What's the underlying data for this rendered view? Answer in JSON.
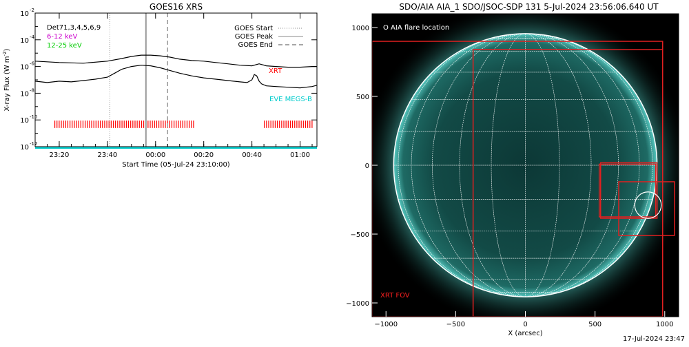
{
  "footer_timestamp": "17-Jul-2024 23:47",
  "chart_data": [
    {
      "type": "line",
      "title": "GOES16 XRS",
      "xlabel": "Start Time (05-Jul-24 23:10:00)",
      "ylabel": "X-ray Flux (W m",
      "ylabel_sup": "-2",
      "ylabel_close": ")",
      "log_y": true,
      "x_unit": "minutes since 23:10:00",
      "xlim": [
        0,
        117
      ],
      "ylim_exp": [
        -12,
        -2
      ],
      "x_ticks": [
        {
          "x": 10,
          "label": "23:20"
        },
        {
          "x": 30,
          "label": "23:40"
        },
        {
          "x": 50,
          "label": "00:00"
        },
        {
          "x": 70,
          "label": "00:20"
        },
        {
          "x": 90,
          "label": "00:40"
        },
        {
          "x": 110,
          "label": "01:00"
        }
      ],
      "y_ticks": [
        {
          "exp": -12,
          "label": "10",
          "sup": "-12"
        },
        {
          "exp": -10,
          "label": "10",
          "sup": "-10"
        },
        {
          "exp": -8,
          "label": "10",
          "sup": "-8"
        },
        {
          "exp": -6,
          "label": "10",
          "sup": "-6"
        },
        {
          "exp": -4,
          "label": "10",
          "sup": "-4"
        },
        {
          "exp": -2,
          "label": "10",
          "sup": "-2"
        }
      ],
      "legend_left": [
        {
          "text": "Det71,3,4,5,6,9",
          "color": "#000000"
        },
        {
          "text": "6-12 keV",
          "color": "#cc00cc"
        },
        {
          "text": "12-25 keV",
          "color": "#00cc00"
        }
      ],
      "legend_right": [
        {
          "text": "GOES Start",
          "style": "dotted"
        },
        {
          "text": "GOES Peak",
          "style": "solid"
        },
        {
          "text": "GOES End",
          "style": "dashed"
        }
      ],
      "markers": {
        "start": 31,
        "peak": 46,
        "end": 55
      },
      "annotations": [
        {
          "text": "XRT",
          "color": "#ff0000"
        },
        {
          "text": "EVE MEGS-B",
          "color": "#00cccc"
        }
      ],
      "series": [
        {
          "color": "#000000",
          "x": [
            0,
            10,
            20,
            30,
            36,
            40,
            44,
            48,
            52,
            56,
            60,
            65,
            70,
            75,
            80,
            85,
            90,
            93,
            96,
            100,
            105,
            110,
            115,
            117
          ],
          "y_exp": [
            -5.6,
            -5.7,
            -5.75,
            -5.6,
            -5.4,
            -5.25,
            -5.15,
            -5.15,
            -5.2,
            -5.3,
            -5.45,
            -5.55,
            -5.6,
            -5.7,
            -5.8,
            -5.9,
            -5.95,
            -5.8,
            -5.95,
            -6.0,
            -6.05,
            -6.05,
            -6.0,
            -6.0
          ]
        },
        {
          "color": "#000000",
          "x": [
            0,
            5,
            10,
            15,
            20,
            25,
            30,
            33,
            36,
            40,
            44,
            48,
            52,
            56,
            60,
            65,
            70,
            75,
            80,
            85,
            88,
            90,
            91,
            92,
            93,
            94,
            96,
            100,
            105,
            110,
            115,
            117
          ],
          "y_exp": [
            -7.1,
            -7.2,
            -7.1,
            -7.15,
            -7.05,
            -6.95,
            -6.8,
            -6.5,
            -6.2,
            -6.0,
            -5.9,
            -5.95,
            -6.1,
            -6.3,
            -6.5,
            -6.7,
            -6.85,
            -6.95,
            -7.05,
            -7.15,
            -7.2,
            -7.0,
            -6.6,
            -6.7,
            -7.1,
            -7.3,
            -7.45,
            -7.5,
            -7.55,
            -7.6,
            -7.5,
            -7.4
          ]
        },
        {
          "color": "#00cccc",
          "x": [
            0,
            117
          ],
          "y_exp": [
            -12.1,
            -12.1
          ]
        }
      ],
      "xrt_coverage": [
        [
          8,
          66
        ],
        [
          95,
          115
        ]
      ]
    },
    {
      "type": "scatter",
      "title": "SDO/AIA AIA_1 SDO/JSOC-SDP 131  5-Jul-2024 23:56:06.640 UT",
      "xlabel": "X (arcsec)",
      "ylabel": "",
      "xlim": [
        -1100,
        1100
      ],
      "ylim": [
        -1100,
        1100
      ],
      "x_ticks": [
        -1000,
        -500,
        0,
        500,
        1000
      ],
      "y_ticks": [
        -1000,
        -500,
        0,
        500,
        1000
      ],
      "legend": "O AIA flare location",
      "annotation": "XRT FOV",
      "solar_radius_arcsec": 945,
      "rectangles": [
        {
          "x0": -1100,
          "y0": -1100,
          "x1": 985,
          "y1": 900,
          "color": "#e02020"
        },
        {
          "x0": -375,
          "y0": -1100,
          "x1": 985,
          "y1": 840,
          "color": "#e02020"
        },
        {
          "x0": 530,
          "y0": -375,
          "x1": 935,
          "y1": 8,
          "color": "#e02020"
        },
        {
          "x0": 540,
          "y0": -385,
          "x1": 945,
          "y1": 18,
          "color": "#e02020"
        },
        {
          "x0": 670,
          "y0": -510,
          "x1": 1070,
          "y1": -120,
          "color": "#e02020"
        }
      ],
      "flare": {
        "x": 880,
        "y": -290,
        "r_arcsec": 95
      }
    }
  ]
}
